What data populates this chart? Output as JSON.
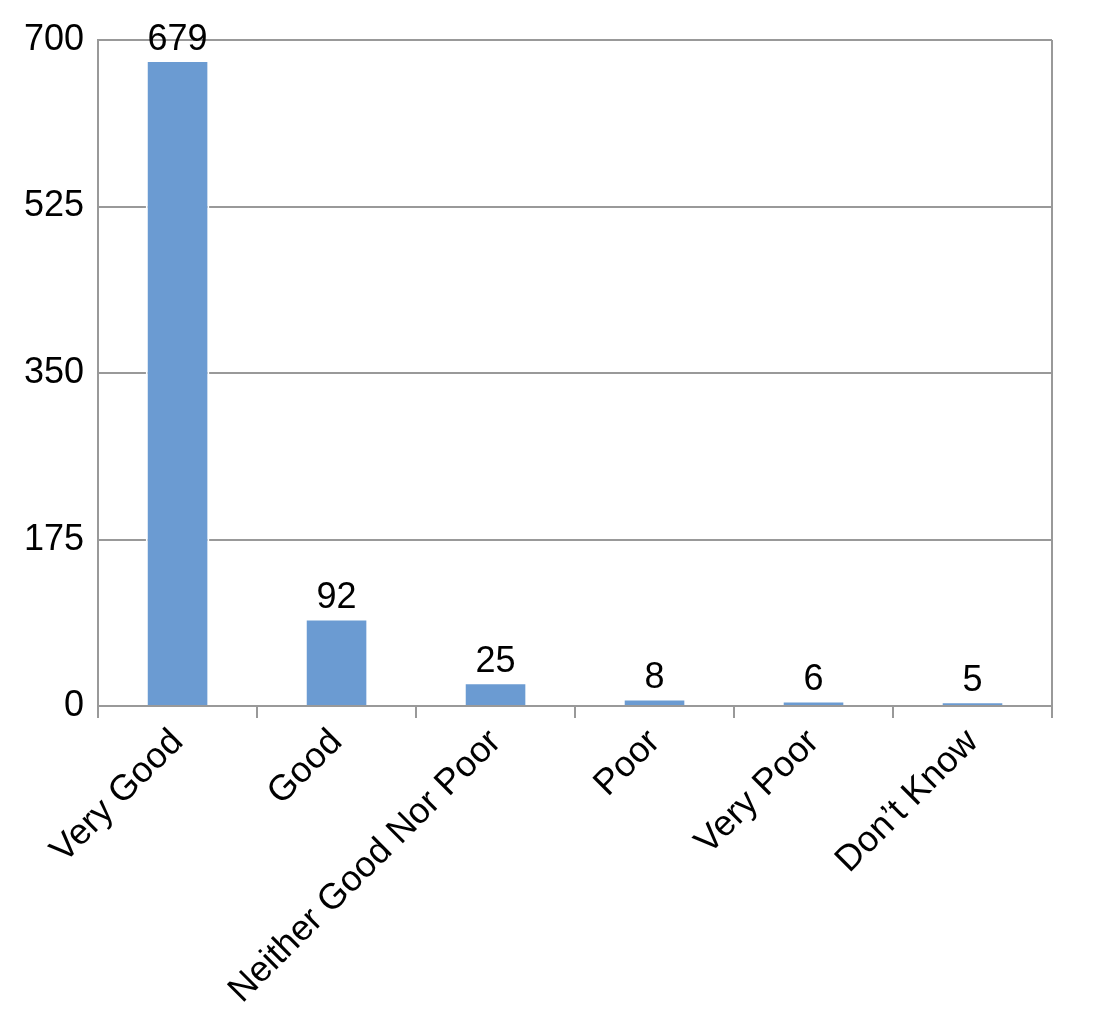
{
  "chart_data": {
    "type": "bar",
    "categories": [
      "Very Good",
      "Good",
      "Neither Good Nor Poor",
      "Poor",
      "Very Poor",
      "Don’t Know"
    ],
    "values": [
      679,
      92,
      25,
      8,
      6,
      5
    ],
    "color": "#6b9bd2",
    "ylim": [
      0,
      700
    ],
    "yticks": [
      0,
      175,
      350,
      525,
      700
    ],
    "grid": "y",
    "data_labels": true
  }
}
